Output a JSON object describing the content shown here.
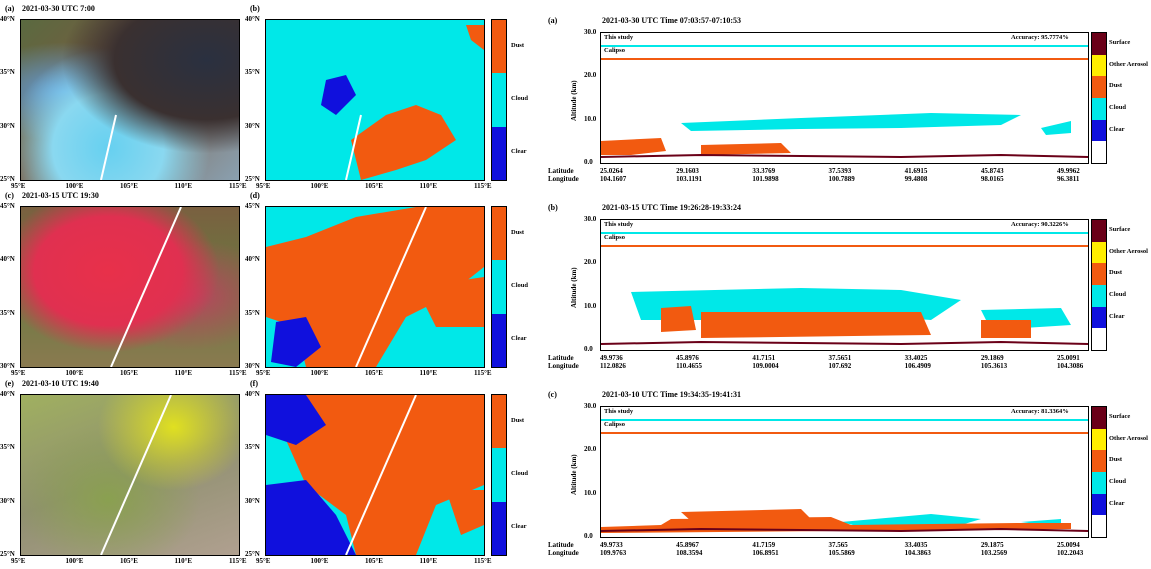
{
  "maps": [
    {
      "label": "(a)",
      "title": "2021-03-30 UTC 7:00",
      "lat_ticks": [
        "40°N",
        "35°N",
        "30°N",
        "25°N"
      ],
      "lon_ticks": [
        "95°E",
        "100°E",
        "105°E",
        "110°E",
        "115°E"
      ]
    },
    {
      "label": "(b)",
      "lat_ticks": [
        "40°N",
        "35°N",
        "30°N",
        "25°N"
      ],
      "lon_ticks": [
        "95°E",
        "100°E",
        "105°E",
        "110°E",
        "115°E"
      ]
    },
    {
      "label": "(c)",
      "title": "2021-03-15 UTC 19:30",
      "lat_ticks": [
        "45°N",
        "40°N",
        "35°N",
        "30°N"
      ],
      "lon_ticks": [
        "95°E",
        "100°E",
        "105°E",
        "110°E",
        "115°E"
      ]
    },
    {
      "label": "(d)",
      "lat_ticks": [
        "45°N",
        "40°N",
        "35°N",
        "30°N"
      ],
      "lon_ticks": [
        "95°E",
        "100°E",
        "105°E",
        "110°E",
        "115°E"
      ]
    },
    {
      "label": "(e)",
      "title": "2021-03-10 UTC 19:40",
      "lat_ticks": [
        "40°N",
        "35°N",
        "30°N",
        "25°N"
      ],
      "lon_ticks": [
        "95°E",
        "100°E",
        "105°E",
        "110°E",
        "115°E"
      ]
    },
    {
      "label": "(f)",
      "lat_ticks": [
        "40°N",
        "35°N",
        "30°N",
        "25°N"
      ],
      "lon_ticks": [
        "95°E",
        "100°E",
        "105°E",
        "110°E",
        "115°E"
      ]
    }
  ],
  "class_colorbar": {
    "labels": [
      "Dust",
      "Cloud",
      "Clear"
    ],
    "colors": [
      "#f25a10",
      "#00e8e8",
      "#1010dd"
    ]
  },
  "profiles": [
    {
      "label": "(a)",
      "title": "2021-03-30 UTC Time 07:03:57-07:10:53",
      "accuracy": "Accuracy: 95.7774%",
      "latitudes": [
        "25.0264",
        "29.1603",
        "33.3769",
        "37.5393",
        "41.6915",
        "45.8743",
        "49.9962"
      ],
      "longitudes": [
        "104.1607",
        "103.1191",
        "101.9898",
        "100.7889",
        "99.4808",
        "98.0165",
        "96.3811"
      ]
    },
    {
      "label": "(b)",
      "title": "2021-03-15 UTC Time 19:26:28-19:33:24",
      "accuracy": "Accuracy: 90.3226%",
      "latitudes": [
        "49.9736",
        "45.8976",
        "41.7151",
        "37.5651",
        "33.4025",
        "29.1869",
        "25.0091"
      ],
      "longitudes": [
        "112.0826",
        "110.4655",
        "109.0004",
        "107.692",
        "106.4909",
        "105.3613",
        "104.3086"
      ]
    },
    {
      "label": "(c)",
      "title": "2021-03-10 UTC Time 19:34:35-19:41:31",
      "accuracy": "Accuracy: 81.3364%",
      "latitudes": [
        "49.9733",
        "45.8967",
        "41.7159",
        "37.565",
        "33.4035",
        "29.1875",
        "25.0094"
      ],
      "longitudes": [
        "109.9763",
        "108.3594",
        "106.8951",
        "105.5869",
        "104.3863",
        "103.2569",
        "102.2043"
      ]
    }
  ],
  "profile_common": {
    "this_study": "This study",
    "calipso": "Calipso",
    "ylabel": "Altitude (km)",
    "yticks": [
      "30.0",
      "20.0",
      "10.0",
      "0.0"
    ],
    "row_lat": "Latitude",
    "row_lon": "Longitude"
  },
  "profile_colorbar": {
    "labels": [
      "Surface",
      "Other Aerosol",
      "Dust",
      "Cloud",
      "Clear",
      ""
    ],
    "colors": [
      "#6a0018",
      "#ffee00",
      "#f25a10",
      "#00e8e8",
      "#1010dd",
      "#ffffff"
    ]
  }
}
